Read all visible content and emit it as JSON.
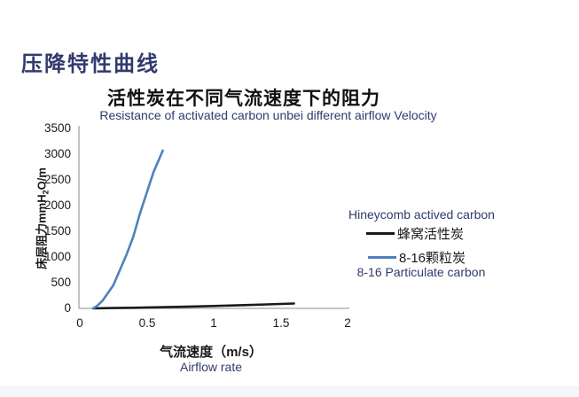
{
  "page_title": "压降特性曲线",
  "chart_data": {
    "type": "line",
    "title": "活性炭在不同气流速度下的阻力",
    "subtitle": "Resistance of activated carbon unbei different airflow Velocity",
    "xlabel": "气流速度（m/s）",
    "xlabel_en": "Airflow rate",
    "ylabel": "床层阻力mmH2O/m",
    "xlim": [
      0,
      2
    ],
    "ylim": [
      0,
      3500
    ],
    "xticks": [
      0,
      0.5,
      1,
      1.5,
      2
    ],
    "yticks": [
      0,
      500,
      1000,
      1500,
      2000,
      2500,
      3000,
      3500
    ],
    "grid": false,
    "legend_position": "right",
    "series": [
      {
        "name": "蜂窝活性炭",
        "name_en": "Hineycomb actived carbon",
        "color": "#1a1a1a",
        "width": 2.6,
        "points": [
          [
            0.1,
            0
          ],
          [
            0.2,
            5
          ],
          [
            0.4,
            12
          ],
          [
            0.6,
            22
          ],
          [
            0.8,
            33
          ],
          [
            1.0,
            46
          ],
          [
            1.2,
            62
          ],
          [
            1.4,
            78
          ],
          [
            1.6,
            95
          ]
        ]
      },
      {
        "name": "8-16颗粒炭",
        "name_en": "8-16 Particulate carbon",
        "color": "#4f81bd",
        "width": 2.6,
        "points": [
          [
            0.1,
            0
          ],
          [
            0.13,
            50
          ],
          [
            0.17,
            150
          ],
          [
            0.2,
            260
          ],
          [
            0.25,
            450
          ],
          [
            0.3,
            750
          ],
          [
            0.35,
            1050
          ],
          [
            0.4,
            1400
          ],
          [
            0.45,
            1850
          ],
          [
            0.5,
            2250
          ],
          [
            0.55,
            2650
          ],
          [
            0.6,
            2950
          ],
          [
            0.62,
            3070
          ]
        ]
      }
    ]
  },
  "axes": {
    "y_tick_labels": [
      "3500",
      "3000",
      "2500",
      "2000",
      "1500",
      "1000",
      "500",
      "0"
    ],
    "x_tick_labels": [
      "0",
      "0.5",
      "1",
      "1.5",
      "2"
    ],
    "y_title": {
      "pre": "床层阻力mmH",
      "sub": "2",
      "post": "O/m"
    },
    "x_title": "气流速度（m/s）",
    "x_title_en": "Airflow rate"
  },
  "legend": {
    "heading_en": "Hineycomb actived carbon",
    "items": [
      {
        "label": "蜂窝活性炭"
      },
      {
        "label": "8-16颗粒炭"
      }
    ],
    "footnote_en": "8-16 Particulate carbon"
  },
  "colors": {
    "accent_navy": "#313a6e",
    "series_black": "#1a1a1a",
    "series_blue": "#4f81bd",
    "axis_gray": "#a3a3a3"
  }
}
